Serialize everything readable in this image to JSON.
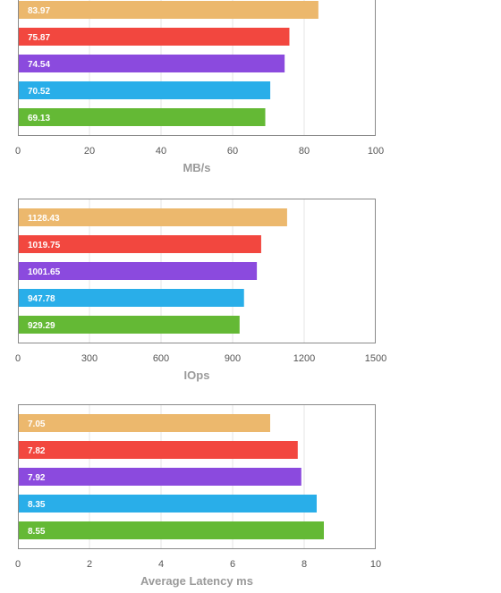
{
  "colors": {
    "series": [
      "#ecb86d",
      "#f2473f",
      "#8b4ade",
      "#29aee9",
      "#64b935"
    ],
    "gridline": "#e6e6e6",
    "frame": "#8a8a8a",
    "tick_text": "#555555",
    "axis_title": "#9a9a9a"
  },
  "chart_data": [
    {
      "type": "bar",
      "orientation": "horizontal",
      "xlabel": "MB/s",
      "xlim": [
        0,
        100
      ],
      "xticks": [
        0,
        20,
        40,
        60,
        80,
        100
      ],
      "grid": true,
      "bars": [
        {
          "value": 83.97,
          "label": "83.97"
        },
        {
          "value": 75.87,
          "label": "75.87"
        },
        {
          "value": 74.54,
          "label": "74.54"
        },
        {
          "value": 70.52,
          "label": "70.52"
        },
        {
          "value": 69.13,
          "label": "69.13"
        }
      ]
    },
    {
      "type": "bar",
      "orientation": "horizontal",
      "xlabel": "IOps",
      "xlim": [
        0,
        1500
      ],
      "xticks": [
        0,
        300,
        600,
        900,
        1200,
        1500
      ],
      "grid": true,
      "bars": [
        {
          "value": 1128.43,
          "label": "1128.43"
        },
        {
          "value": 1019.75,
          "label": "1019.75"
        },
        {
          "value": 1001.65,
          "label": "1001.65"
        },
        {
          "value": 947.78,
          "label": "947.78"
        },
        {
          "value": 929.29,
          "label": "929.29"
        }
      ]
    },
    {
      "type": "bar",
      "orientation": "horizontal",
      "xlabel": "Average Latency ms",
      "xlim": [
        0,
        10
      ],
      "xticks": [
        0,
        2,
        4,
        6,
        8,
        10
      ],
      "grid": true,
      "bars": [
        {
          "value": 7.05,
          "label": "7.05"
        },
        {
          "value": 7.82,
          "label": "7.82"
        },
        {
          "value": 7.92,
          "label": "7.92"
        },
        {
          "value": 8.35,
          "label": "8.35"
        },
        {
          "value": 8.55,
          "label": "8.55"
        }
      ]
    }
  ]
}
